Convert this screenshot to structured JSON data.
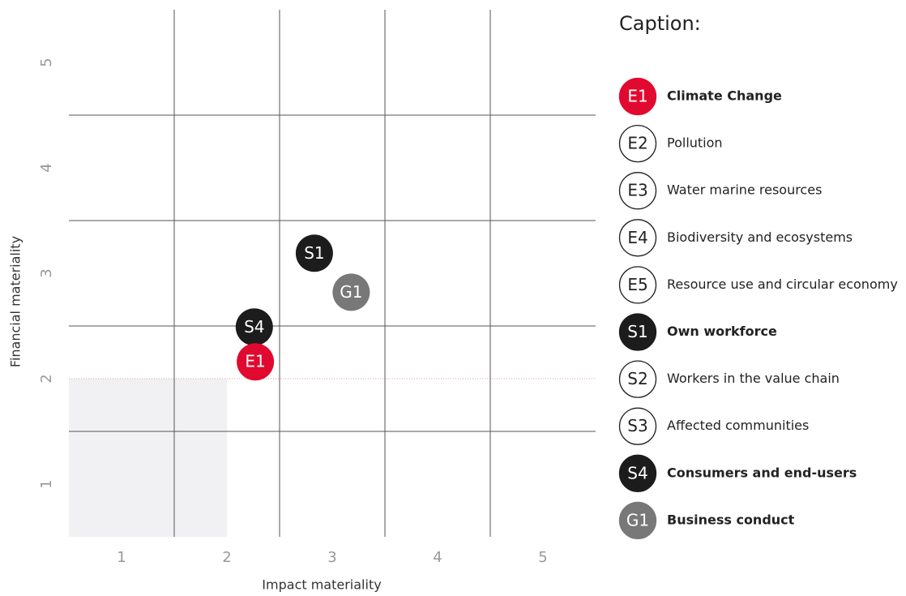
{
  "chart_data": {
    "type": "scatter",
    "xlabel": "Impact materiality",
    "ylabel": "Financial materiality",
    "xlim": [
      0.5,
      5.5
    ],
    "ylim": [
      0.5,
      5.5
    ],
    "xticks": [
      1,
      2,
      3,
      4,
      5
    ],
    "yticks": [
      1,
      2,
      3,
      4,
      5
    ],
    "xgrid": [
      1.5,
      2.5,
      3.5,
      4.5
    ],
    "ygrid": [
      1.5,
      2.5,
      3.5,
      4.5
    ],
    "threshold": {
      "x": 2,
      "y": 2
    },
    "points": [
      {
        "name": "S1",
        "x": 2.83,
        "y": 3.19,
        "color": "#1c1c1c"
      },
      {
        "name": "G1",
        "x": 3.18,
        "y": 2.82,
        "color": "#787878"
      },
      {
        "name": "S4",
        "x": 2.26,
        "y": 2.49,
        "color": "#1c1c1c"
      },
      {
        "name": "E1",
        "x": 2.27,
        "y": 2.16,
        "color": "#e1092f"
      }
    ],
    "legend": {
      "title": "Caption:",
      "items": [
        {
          "code": "E1",
          "label": "Climate Change",
          "color": "#e1092f",
          "bold": true
        },
        {
          "code": "E2",
          "label": "Pollution",
          "color": "#ffffff",
          "bold": false
        },
        {
          "code": "E3",
          "label": "Water marine resources",
          "color": "#ffffff",
          "bold": false
        },
        {
          "code": "E4",
          "label": "Biodiversity and ecosystems",
          "color": "#ffffff",
          "bold": false
        },
        {
          "code": "E5",
          "label": "Resource use and circular economy",
          "color": "#ffffff",
          "bold": false
        },
        {
          "code": "S1",
          "label": "Own workforce",
          "color": "#1c1c1c",
          "bold": true
        },
        {
          "code": "S2",
          "label": "Workers in the value chain",
          "color": "#ffffff",
          "bold": false
        },
        {
          "code": "S3",
          "label": "Affected communities",
          "color": "#ffffff",
          "bold": false
        },
        {
          "code": "S4",
          "label": "Consumers and end-users",
          "color": "#1c1c1c",
          "bold": true
        },
        {
          "code": "G1",
          "label": "Business conduct",
          "color": "#787878",
          "bold": true
        }
      ]
    }
  }
}
